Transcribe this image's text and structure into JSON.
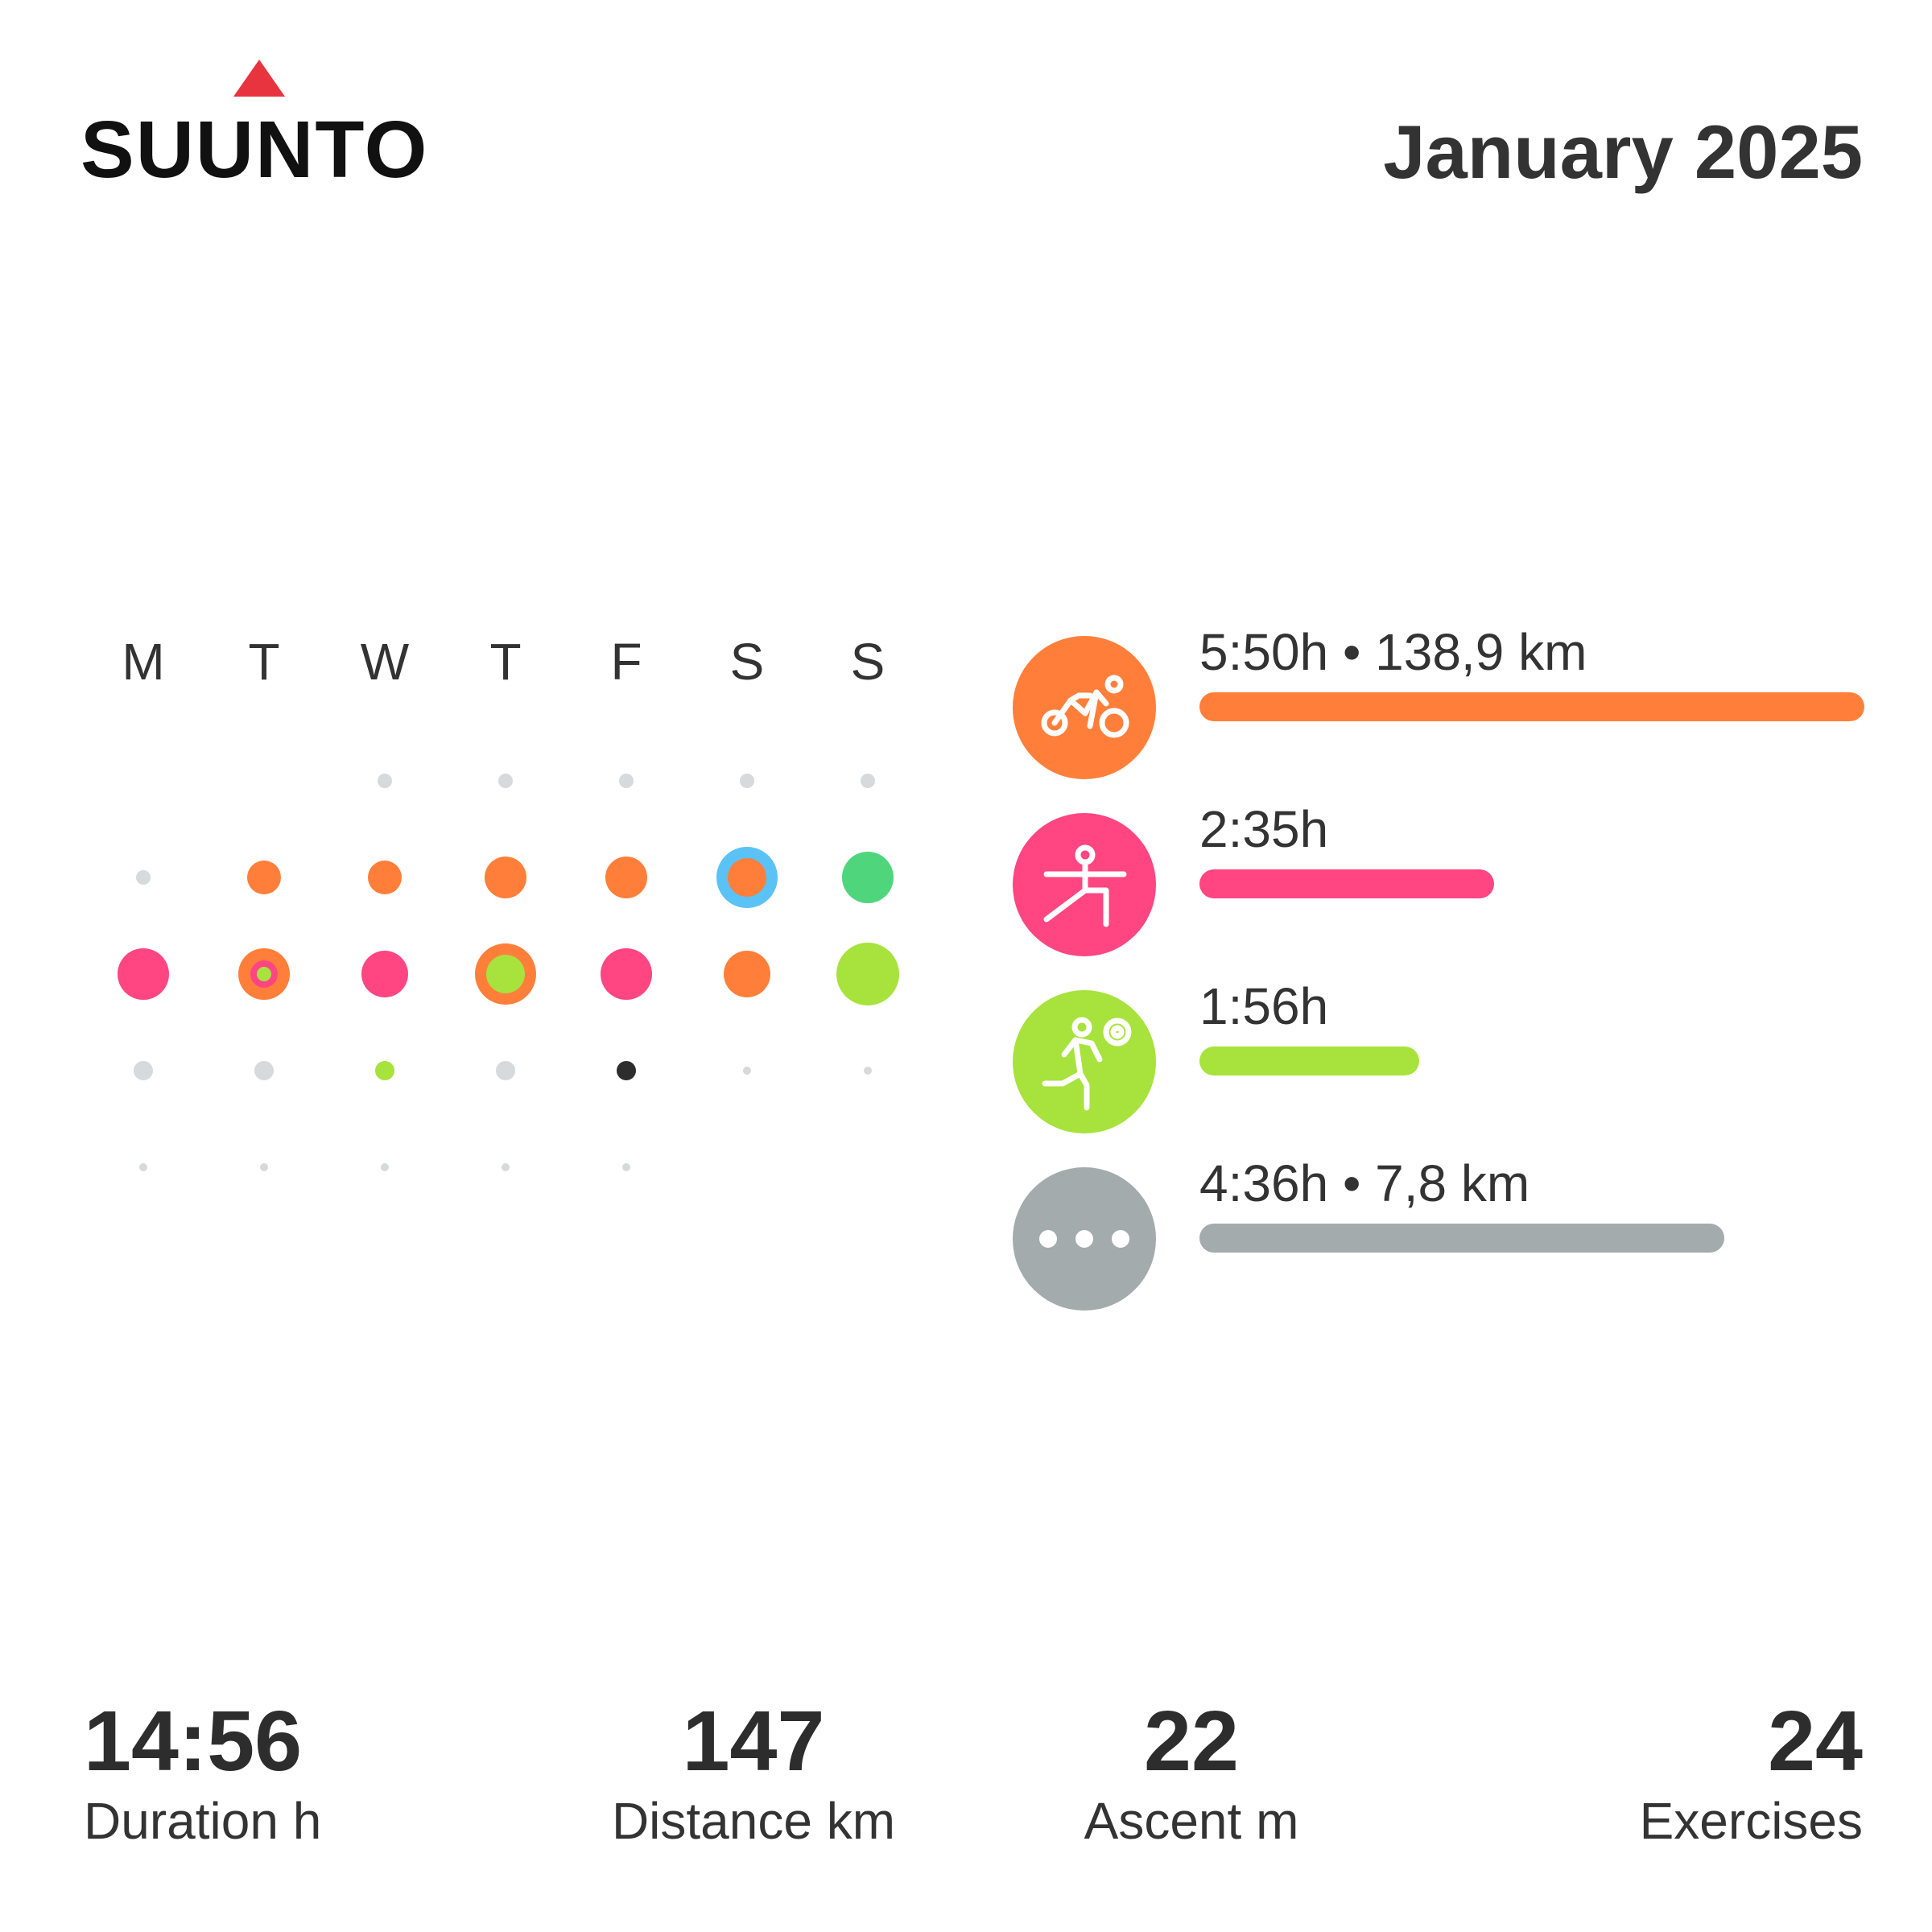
{
  "brand": {
    "name": "SUUNTO",
    "color": "#e8343e"
  },
  "header": {
    "title": "January 2025"
  },
  "calendar": {
    "day_headers": [
      "M",
      "T",
      "W",
      "T",
      "F",
      "S",
      "S"
    ],
    "weeks": [
      [
        null,
        null,
        {
          "kind": "tiny",
          "color": "#d7d9db"
        },
        {
          "kind": "tiny",
          "color": "#d7d9db"
        },
        {
          "kind": "tiny",
          "color": "#d7d9db"
        },
        {
          "kind": "tiny",
          "color": "#d7d9db"
        },
        {
          "kind": "tiny",
          "color": "#d7d9db"
        }
      ],
      [
        {
          "kind": "tiny",
          "color": "#d7d9db"
        },
        {
          "kind": "medium",
          "color": "#ff7f3a"
        },
        {
          "kind": "medium",
          "color": "#ff7f3a"
        },
        {
          "kind": "large",
          "color": "#ff7f3a"
        },
        {
          "kind": "large",
          "color": "#ff7f3a"
        },
        {
          "kind": "ring",
          "color": "#ff7f3a",
          "ring": "#5bc2f5"
        },
        {
          "kind": "xlarge",
          "color": "#4fd67d"
        }
      ],
      [
        {
          "kind": "xlarge",
          "color": "#ff4582"
        },
        {
          "kind": "nested",
          "color": "#ff7f3a",
          "ring2": "#ff4582",
          "inner": "#a8e23c"
        },
        {
          "kind": "large2",
          "color": "#ff4582"
        },
        {
          "kind": "ring",
          "color": "#a8e23c",
          "ring": "#ff7f3a"
        },
        {
          "kind": "xlarge",
          "color": "#ff4582"
        },
        {
          "kind": "large2",
          "color": "#ff7f3a"
        },
        {
          "kind": "xxlarge",
          "color": "#a8e23c"
        }
      ],
      [
        {
          "kind": "small",
          "color": "#d7d9db"
        },
        {
          "kind": "small",
          "color": "#d7d9db"
        },
        {
          "kind": "small",
          "color": "#a8e23c"
        },
        {
          "kind": "small",
          "color": "#d7d9db"
        },
        {
          "kind": "small",
          "color": "#2d2d2d"
        },
        {
          "kind": "mini",
          "color": "#d7d9db"
        },
        {
          "kind": "mini",
          "color": "#d7d9db"
        }
      ],
      [
        {
          "kind": "mini",
          "color": "#d7d9db"
        },
        {
          "kind": "mini",
          "color": "#d7d9db"
        },
        {
          "kind": "mini",
          "color": "#d7d9db"
        },
        {
          "kind": "mini",
          "color": "#d7d9db"
        },
        {
          "kind": "mini",
          "color": "#d7d9db"
        },
        null,
        null
      ]
    ]
  },
  "activities": [
    {
      "icon": "cycling-icon",
      "label": "5:50h • 138,9 km",
      "color": "#ff7f3a",
      "share": 1.0
    },
    {
      "icon": "yoga-icon",
      "label": "2:35h",
      "color": "#ff4582",
      "share": 0.443
    },
    {
      "icon": "ball-sport-icon",
      "label": "1:56h",
      "color": "#a8e23c",
      "share": 0.331
    },
    {
      "icon": "more-icon",
      "label": "4:36h • 7,8 km",
      "color": "#a4abad",
      "share": 0.789
    }
  ],
  "stats": [
    {
      "value": "14:56",
      "label": "Duration h"
    },
    {
      "value": "147",
      "label": "Distance km"
    },
    {
      "value": "22",
      "label": "Ascent m"
    },
    {
      "value": "24",
      "label": "Exercises"
    }
  ]
}
